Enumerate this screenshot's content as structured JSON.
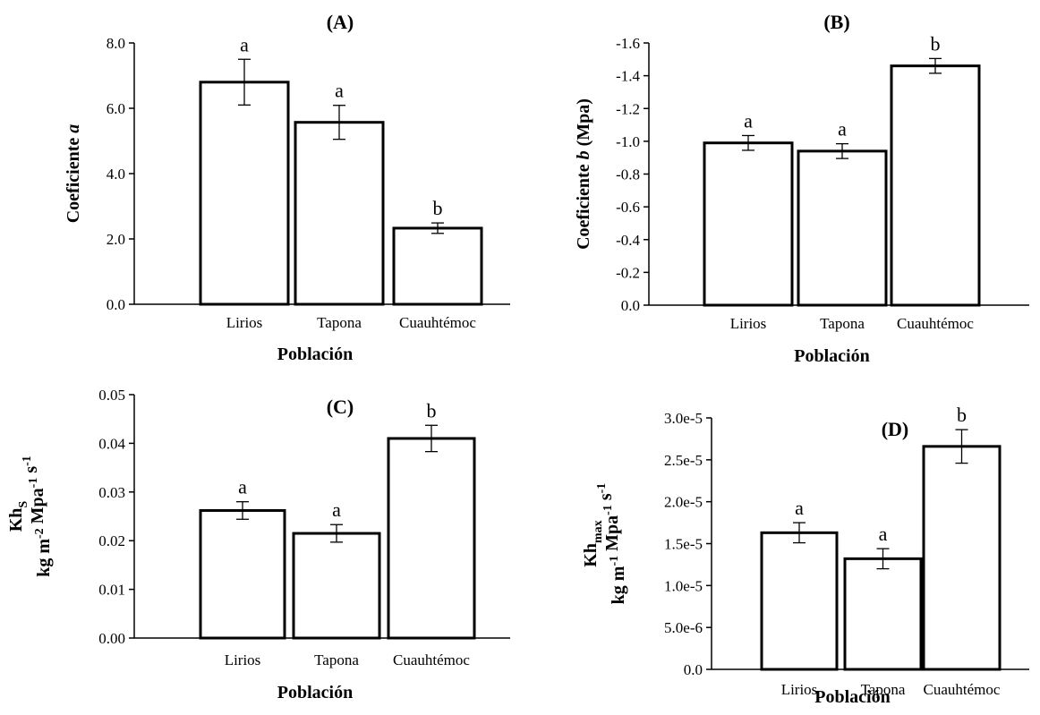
{
  "chart_data": [
    {
      "type": "bar",
      "title": "(A)",
      "xlabel": "Población",
      "ylabel": {
        "parts": [
          {
            "t": "Coeficiente "
          },
          {
            "t": "a",
            "italic": true
          }
        ]
      },
      "categories": [
        "Lirios",
        "Tapona",
        "Cuauhtémoc"
      ],
      "values": [
        6.8,
        5.57,
        2.33
      ],
      "errors": [
        0.7,
        0.52,
        0.16
      ],
      "letters": [
        "a",
        "a",
        "b"
      ],
      "ylim": [
        0,
        8
      ],
      "yticks": [
        0,
        2,
        4,
        6,
        8
      ],
      "ytick_labels": [
        "0.0",
        "2.0",
        "4.0",
        "6.0",
        "8.0"
      ],
      "grid": false
    },
    {
      "type": "bar",
      "title": "(B)",
      "xlabel": "Población",
      "ylabel": {
        "parts": [
          {
            "t": "Coeficiente "
          },
          {
            "t": "b",
            "italic": true
          },
          {
            "t": " (Mpa)"
          }
        ]
      },
      "categories": [
        "Lirios",
        "Tapona",
        "Cuauhtémoc"
      ],
      "values": [
        -0.99,
        -0.94,
        -1.46
      ],
      "errors": [
        0.045,
        0.045,
        0.045
      ],
      "letters": [
        "a",
        "a",
        "b"
      ],
      "ylim": [
        0,
        -1.6
      ],
      "yticks": [
        0,
        -0.2,
        -0.4,
        -0.6,
        -0.8,
        -1.0,
        -1.2,
        -1.4,
        -1.6
      ],
      "ytick_labels": [
        "0.0",
        "-0.2",
        "-0.4",
        "-0.6",
        "-0.8",
        "-1.0",
        "-1.2",
        "-1.4",
        "-1.6"
      ],
      "grid": false
    },
    {
      "type": "bar",
      "title": "(C)",
      "xlabel": "Población",
      "ylabel": {
        "line1": [
          {
            "t": "Kh"
          },
          {
            "t": "S",
            "sub": true
          }
        ],
        "line2": [
          {
            "t": "kg m"
          },
          {
            "t": "-2",
            "sup": true
          },
          {
            "t": " Mpa"
          },
          {
            "t": "-1",
            "sup": true
          },
          {
            "t": " s"
          },
          {
            "t": "-1",
            "sup": true
          }
        ]
      },
      "categories": [
        "Lirios",
        "Tapona",
        "Cuauhtémoc"
      ],
      "values": [
        0.0262,
        0.0215,
        0.041
      ],
      "errors": [
        0.0018,
        0.0018,
        0.0027
      ],
      "letters": [
        "a",
        "a",
        "b"
      ],
      "ylim": [
        0,
        0.05
      ],
      "yticks": [
        0,
        0.01,
        0.02,
        0.03,
        0.04,
        0.05
      ],
      "ytick_labels": [
        "0.00",
        "0.01",
        "0.02",
        "0.03",
        "0.04",
        "0.05"
      ],
      "grid": false
    },
    {
      "type": "bar",
      "title": "(D)",
      "xlabel": "Población",
      "ylabel": {
        "line1": [
          {
            "t": "Kh"
          },
          {
            "t": "max",
            "sub": true
          }
        ],
        "line2": [
          {
            "t": "kg m"
          },
          {
            "t": "-1",
            "sup": true
          },
          {
            "t": " Mpa"
          },
          {
            "t": "-1",
            "sup": true
          },
          {
            "t": " s"
          },
          {
            "t": "-1",
            "sup": true
          }
        ]
      },
      "categories": [
        "Lirios",
        "Tapona",
        "Cuauhtémoc"
      ],
      "values": [
        1.63e-05,
        1.32e-05,
        2.66e-05
      ],
      "errors": [
        1.2e-06,
        1.2e-06,
        2e-06
      ],
      "letters": [
        "a",
        "a",
        "b"
      ],
      "ylim": [
        0,
        3e-05
      ],
      "yticks": [
        0,
        5e-06,
        1e-05,
        1.5e-05,
        2e-05,
        2.5e-05,
        3e-05
      ],
      "ytick_labels": [
        "0.0",
        "5.0e-6",
        "1.0e-5",
        "1.5e-5",
        "2.0e-5",
        "2.5e-5",
        "3.0e-5"
      ],
      "grid": false
    }
  ]
}
